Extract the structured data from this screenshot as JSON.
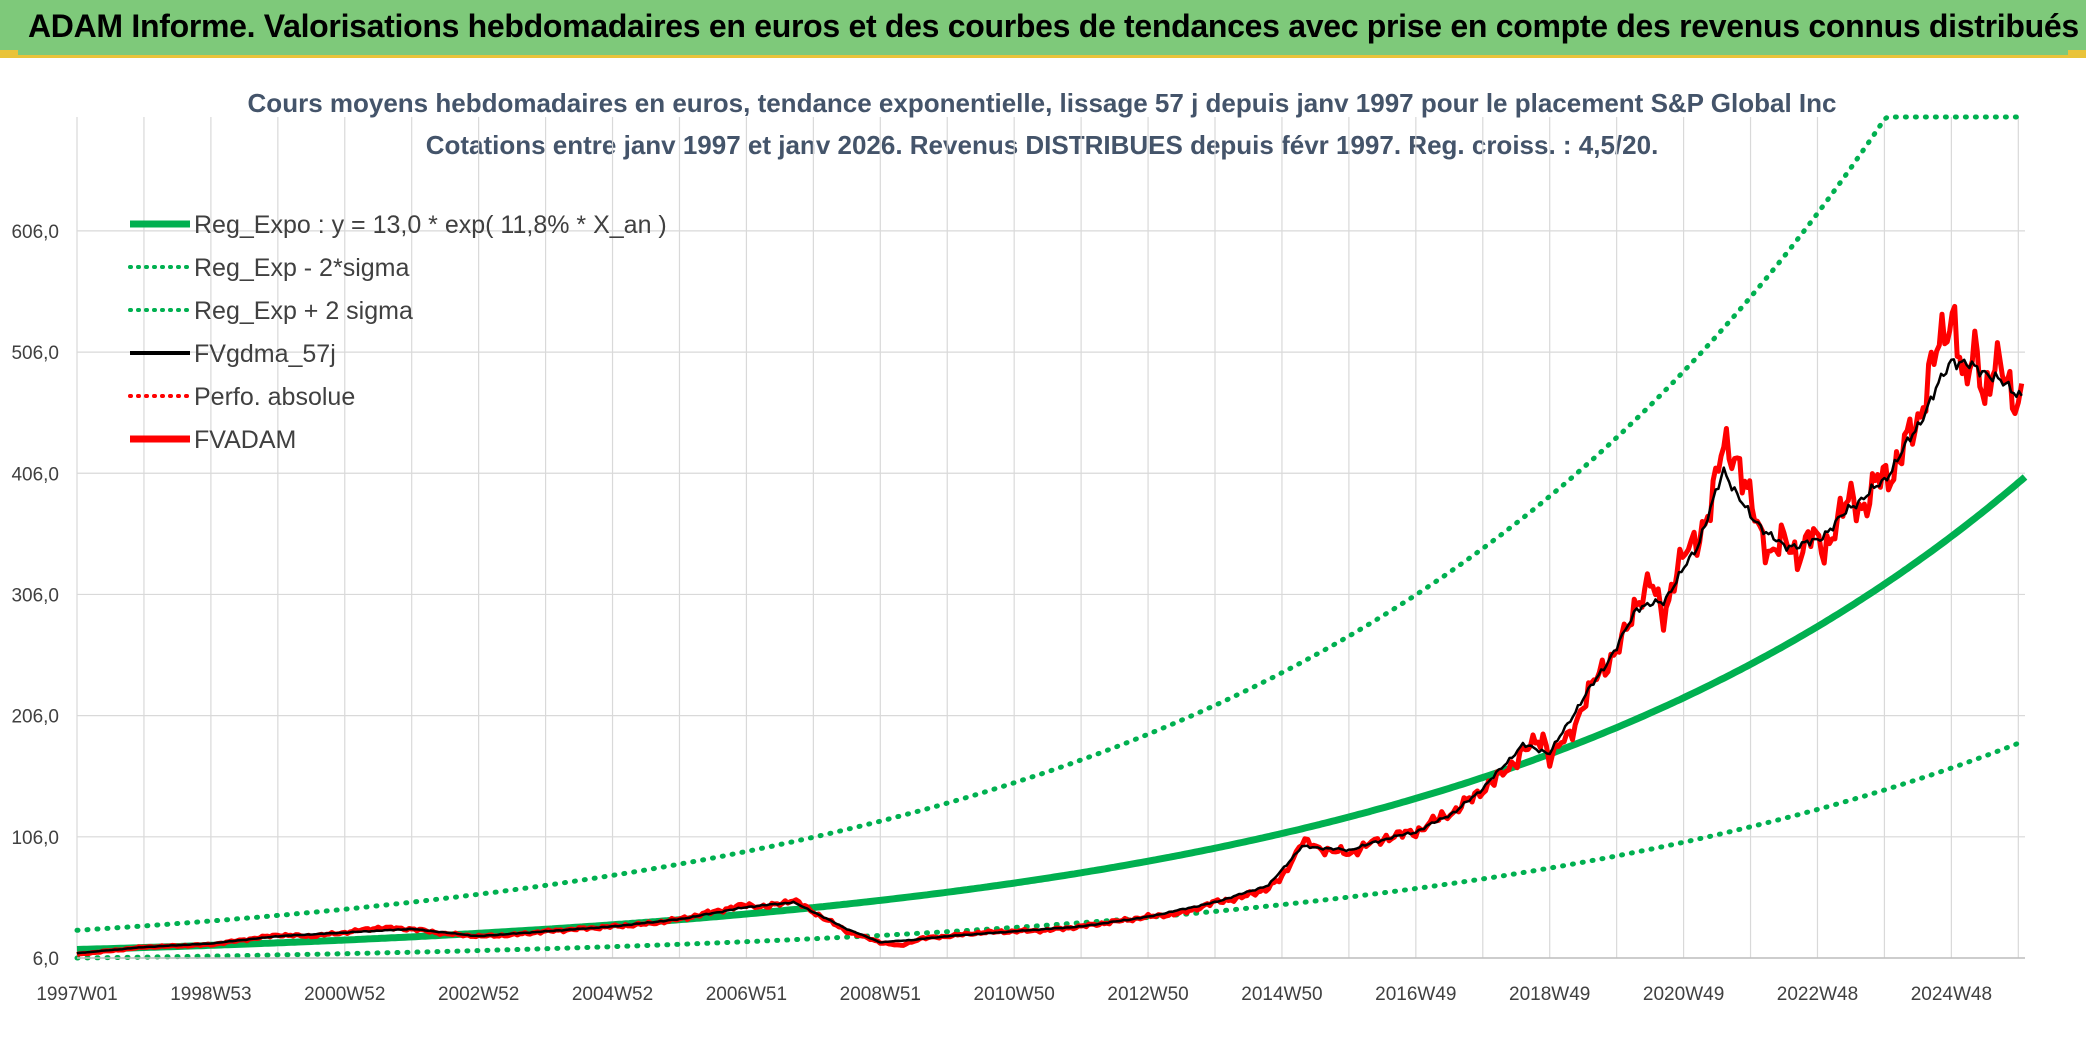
{
  "header": {
    "title": "ADAM Informe. Valorisations hebdomadaires en euros et des courbes de tendances avec prise en compte des revenus connus distribués"
  },
  "colors": {
    "green": "#00b050",
    "red": "#ff0000",
    "black": "#000000",
    "banner": "#7ec97a"
  },
  "chart_data": {
    "type": "line",
    "title": "Cours moyens hebdomadaires en euros, tendance exponentielle, lissage 57 j depuis janv 1997 pour le placement S&P Global Inc",
    "subtitle": "Cotations entre janv 1997 et janv 2026. Revenus DISTRIBUES depuis févr 1997. Reg. croiss. : 4,5/20.",
    "ylim": [
      6,
      700
    ],
    "yticks": [
      "6,0",
      "106,0",
      "206,0",
      "306,0",
      "406,0",
      "506,0",
      "606,0"
    ],
    "ytick_values": [
      6,
      106,
      206,
      306,
      406,
      506,
      606
    ],
    "xlim": [
      1997.0,
      2026.1
    ],
    "xticks": [
      "1997W01",
      "1998W53",
      "2000W52",
      "2002W52",
      "2004W52",
      "2006W51",
      "2008W51",
      "2010W50",
      "2012W50",
      "2014W50",
      "2016W49",
      "2018W49",
      "2020W49",
      "2022W48",
      "2024W48"
    ],
    "xtick_values": [
      1997.0,
      1999.0,
      2001.0,
      2003.0,
      2005.0,
      2007.0,
      2009.0,
      2011.0,
      2013.0,
      2015.0,
      2017.0,
      2019.0,
      2021.0,
      2023.0,
      2025.0
    ],
    "legend": [
      {
        "name": "Reg_Expo : y = 13,0 * exp( 11,8% *  X_an )",
        "style": "solid-thick",
        "color": "#00b050"
      },
      {
        "name": "Reg_Exp - 2*sigma",
        "style": "dotted",
        "color": "#00b050"
      },
      {
        "name": "Reg_Exp + 2 sigma",
        "style": "dotted",
        "color": "#00b050"
      },
      {
        "name": "FVgdma_57j",
        "style": "solid",
        "color": "#000000"
      },
      {
        "name": "Perfo. absolue",
        "style": "dotted",
        "color": "#ff0000"
      },
      {
        "name": "FVADAM",
        "style": "solid-thick",
        "color": "#ff0000"
      }
    ],
    "series": [
      {
        "name": "Reg_Expo",
        "formula": "13.0*exp(0.118*(x-1997))"
      },
      {
        "name": "Reg_Exp - 2*sigma",
        "formula": "0.46*Reg_Expo"
      },
      {
        "name": "Reg_Exp + 2 sigma",
        "formula": "2.22*Reg_Expo",
        "cap": 700
      },
      {
        "name": "FVADAM",
        "x": [
          1997.0,
          1997.5,
          1998.0,
          1998.5,
          1999.0,
          1999.5,
          2000.0,
          2000.5,
          2001.0,
          2001.5,
          2002.0,
          2002.5,
          2003.0,
          2003.5,
          2004.0,
          2004.5,
          2005.0,
          2005.5,
          2006.0,
          2006.5,
          2007.0,
          2007.3,
          2007.7,
          2008.0,
          2008.5,
          2009.0,
          2009.3,
          2009.6,
          2010.0,
          2010.5,
          2011.0,
          2011.5,
          2012.0,
          2012.5,
          2013.0,
          2013.5,
          2014.0,
          2014.4,
          2014.8,
          2015.0,
          2015.3,
          2015.6,
          2016.0,
          2016.3,
          2016.6,
          2017.0,
          2017.3,
          2017.6,
          2018.0,
          2018.3,
          2018.6,
          2018.9,
          2019.0,
          2019.3,
          2019.5,
          2019.7,
          2020.0,
          2020.15,
          2020.3,
          2020.5,
          2020.7,
          2020.9,
          2021.2,
          2021.4,
          2021.6,
          2021.8,
          2021.95,
          2022.1,
          2022.3,
          2022.5,
          2022.7,
          2022.9,
          2023.1,
          2023.3,
          2023.5,
          2023.7,
          2023.9,
          2024.1,
          2024.3,
          2024.5,
          2024.7,
          2024.9,
          2025.05,
          2025.2,
          2025.35,
          2025.5,
          2025.65,
          2025.8,
          2025.95,
          2026.05
        ],
        "values": [
          9,
          12,
          15,
          16,
          17,
          21,
          25,
          24,
          27,
          31,
          30,
          26,
          24,
          25,
          28,
          30,
          32,
          34,
          38,
          44,
          50,
          48,
          54,
          44,
          28,
          19,
          16,
          22,
          24,
          27,
          28,
          29,
          32,
          36,
          40,
          43,
          52,
          56,
          64,
          72,
          102,
          96,
          92,
          100,
          106,
          110,
          120,
          128,
          145,
          158,
          176,
          188,
          172,
          190,
          215,
          238,
          260,
          275,
          300,
          318,
          285,
          330,
          350,
          380,
          428,
          420,
          390,
          364,
          340,
          350,
          338,
          355,
          342,
          368,
          385,
          378,
          400,
          405,
          430,
          445,
          500,
          515,
          540,
          478,
          505,
          470,
          502,
          482,
          462,
          480
        ]
      },
      {
        "name": "FVgdma_57j",
        "x": [
          1997.0,
          1998.0,
          1999.0,
          2000.0,
          2001.0,
          2002.0,
          2003.0,
          2004.0,
          2005.0,
          2006.0,
          2007.0,
          2007.7,
          2008.0,
          2008.5,
          2009.0,
          2009.5,
          2010.0,
          2011.0,
          2012.0,
          2013.0,
          2014.0,
          2014.8,
          2015.3,
          2016.0,
          2016.6,
          2017.0,
          2017.6,
          2018.0,
          2018.6,
          2019.0,
          2019.5,
          2020.0,
          2020.3,
          2020.7,
          2021.2,
          2021.6,
          2022.0,
          2022.5,
          2023.0,
          2023.5,
          2024.0,
          2024.5,
          2025.0,
          2025.5,
          2026.05
        ],
        "values": [
          10,
          15,
          18,
          24,
          27,
          30,
          24,
          28,
          32,
          38,
          48,
          52,
          44,
          30,
          19,
          21,
          24,
          28,
          32,
          40,
          52,
          66,
          98,
          95,
          105,
          110,
          127,
          146,
          182,
          175,
          220,
          262,
          295,
          300,
          345,
          408,
          370,
          345,
          350,
          378,
          400,
          445,
          500,
          490,
          470
        ]
      }
    ]
  }
}
